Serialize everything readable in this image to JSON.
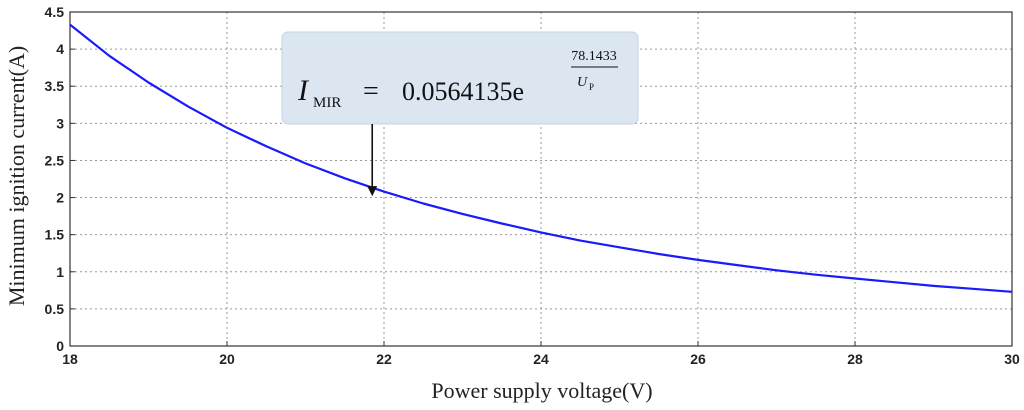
{
  "chart_data": {
    "type": "line",
    "title": "",
    "xlabel": "Power supply voltage(V)",
    "ylabel": "Minimum ignition current(A)",
    "xlim": [
      18,
      30
    ],
    "ylim": [
      0,
      4.5
    ],
    "x_ticks": [
      "18",
      "20",
      "22",
      "24",
      "26",
      "28",
      "30"
    ],
    "y_ticks": [
      "0",
      "0.5",
      "1",
      "1.5",
      "2",
      "2.5",
      "3",
      "3.5",
      "4",
      "4.5"
    ],
    "grid": true,
    "series": [
      {
        "color": "#1a1aff",
        "x": [
          18,
          18.5,
          19,
          19.5,
          20,
          20.5,
          21,
          21.5,
          22,
          22.5,
          23,
          23.5,
          24,
          24.5,
          25,
          25.5,
          26,
          26.5,
          27,
          27.5,
          28,
          28.5,
          29,
          29.5,
          30
        ],
        "y": [
          4.33,
          3.91,
          3.55,
          3.23,
          2.94,
          2.69,
          2.46,
          2.26,
          2.08,
          1.92,
          1.78,
          1.65,
          1.53,
          1.42,
          1.33,
          1.24,
          1.16,
          1.09,
          1.02,
          0.96,
          0.91,
          0.86,
          0.81,
          0.77,
          0.73
        ]
      }
    ],
    "annotation": {
      "symbol": "I",
      "subscript": "MIR",
      "equals": "=",
      "coefficient": "0.0564135e",
      "exp_numerator": "78.1433",
      "exp_denominator_symbol": "U",
      "exp_denominator_subscript": "P",
      "arrow_target": {
        "x": 21.85,
        "y": 2.02
      }
    }
  }
}
